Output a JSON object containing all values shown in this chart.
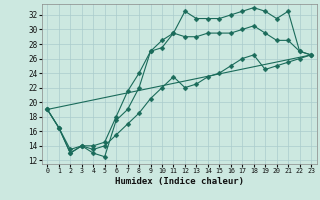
{
  "xlabel": "Humidex (Indice chaleur)",
  "bg_color": "#cce8e0",
  "grid_color": "#aacccc",
  "line_color": "#1a6b5a",
  "xlim": [
    -0.5,
    23.5
  ],
  "ylim": [
    11.5,
    33.5
  ],
  "yticks": [
    12,
    14,
    16,
    18,
    20,
    22,
    24,
    26,
    28,
    30,
    32
  ],
  "xticks": [
    0,
    1,
    2,
    3,
    4,
    5,
    6,
    7,
    8,
    9,
    10,
    11,
    12,
    13,
    14,
    15,
    16,
    17,
    18,
    19,
    20,
    21,
    22,
    23
  ],
  "line1_x": [
    0,
    1,
    2,
    3,
    4,
    5,
    6,
    7,
    8,
    9,
    10,
    11,
    12,
    13,
    14,
    15,
    16,
    17,
    18,
    19,
    20,
    21,
    22,
    23
  ],
  "line1_y": [
    19.0,
    16.5,
    13.0,
    14.0,
    13.0,
    12.5,
    17.5,
    19.0,
    22.0,
    27.0,
    27.5,
    29.5,
    32.5,
    31.5,
    31.5,
    31.5,
    32.0,
    32.5,
    33.0,
    32.5,
    31.5,
    32.5,
    27.0,
    26.5
  ],
  "line2_x": [
    0,
    1,
    2,
    3,
    4,
    5,
    6,
    7,
    8,
    9,
    10,
    11,
    12,
    13,
    14,
    15,
    16,
    17,
    18,
    19,
    20,
    21,
    22,
    23
  ],
  "line2_y": [
    19.0,
    16.5,
    13.0,
    14.0,
    14.0,
    14.5,
    18.0,
    21.5,
    24.0,
    27.0,
    28.5,
    29.5,
    29.0,
    29.0,
    29.5,
    29.5,
    29.5,
    30.0,
    30.5,
    29.5,
    28.5,
    28.5,
    27.0,
    26.5
  ],
  "line3_x": [
    0,
    1,
    2,
    3,
    4,
    5,
    6,
    7,
    8,
    9,
    10,
    11,
    12,
    13,
    14,
    15,
    16,
    17,
    18,
    19,
    20,
    21,
    22,
    23
  ],
  "line3_y": [
    19.0,
    16.5,
    13.5,
    14.0,
    13.5,
    14.0,
    15.5,
    17.0,
    18.5,
    20.5,
    22.0,
    23.5,
    22.0,
    22.5,
    23.5,
    24.0,
    25.0,
    26.0,
    26.5,
    24.5,
    25.0,
    25.5,
    26.0,
    26.5
  ],
  "line4_x": [
    0,
    23
  ],
  "line4_y": [
    19.0,
    26.5
  ]
}
